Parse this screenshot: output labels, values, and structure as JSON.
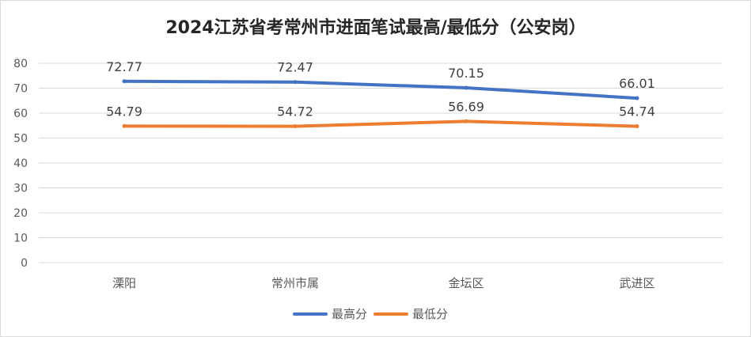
{
  "chart_data": {
    "type": "line",
    "title": "2024江苏省考常州市进面笔试最高/最低分（公安岗）",
    "xlabel": "",
    "ylabel": "",
    "categories": [
      "溧阳",
      "常州市属",
      "金坛区",
      "武进区"
    ],
    "series": [
      {
        "name": "最高分",
        "color": "#4472c4",
        "values": [
          72.77,
          72.47,
          70.15,
          66.01
        ],
        "labels": [
          "72.77",
          "72.47",
          "70.15",
          "66.01"
        ]
      },
      {
        "name": "最低分",
        "color": "#ed7d31",
        "values": [
          54.79,
          54.72,
          56.69,
          54.74
        ],
        "labels": [
          "54.79",
          "54.72",
          "56.69",
          "54.74"
        ]
      }
    ],
    "ylim": [
      0,
      80
    ],
    "yticks": [
      "0",
      "10",
      "20",
      "30",
      "40",
      "50",
      "60",
      "70",
      "80"
    ],
    "grid": true,
    "legend_position": "bottom"
  }
}
